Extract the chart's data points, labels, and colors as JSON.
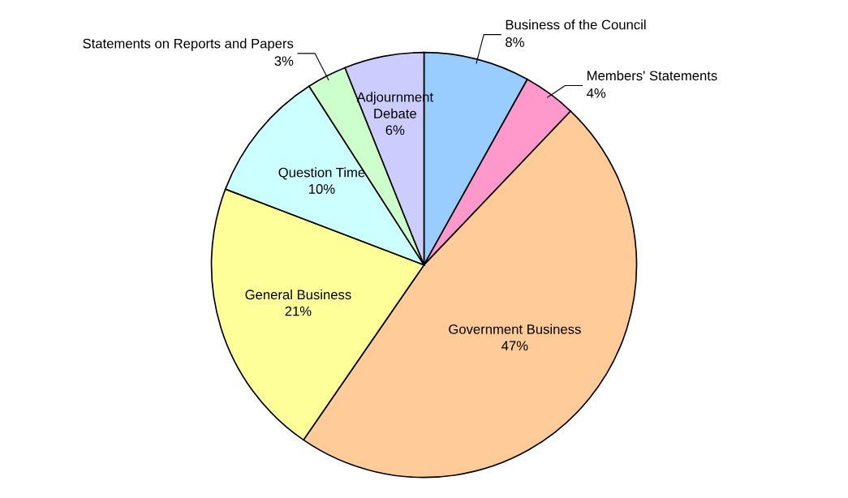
{
  "chart_data": {
    "type": "pie",
    "categories": [
      "Business of the Council",
      "Members' Statements",
      "Government Business",
      "General Business",
      "Question Time",
      "Statements on Reports and Papers",
      "Adjournment Debate"
    ],
    "values": [
      8,
      4,
      47,
      21,
      10,
      3,
      6
    ],
    "value_labels": [
      "8%",
      "4%",
      "47%",
      "21%",
      "10%",
      "3%",
      "6%"
    ],
    "colors": [
      "#99ccff",
      "#ff99cc",
      "#ffcc99",
      "#ffff99",
      "#ccffff",
      "#ccffcc",
      "#ccccff"
    ]
  }
}
